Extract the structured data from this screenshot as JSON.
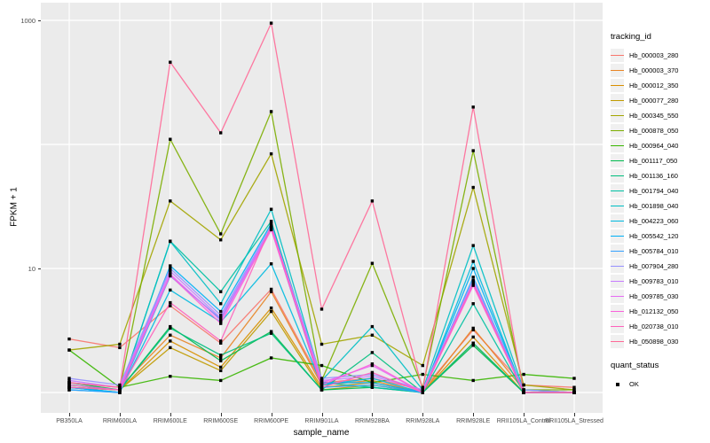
{
  "figure": {
    "panel_background": "#EBEBEB",
    "grid_color": "#FFFFFF",
    "point_color": "#000000",
    "tick_text_color": "#4D4D4D"
  },
  "chart_data": {
    "type": "line",
    "title": "",
    "xlabel": "sample_name",
    "ylabel": "FPKM + 1",
    "y_scale": "log10",
    "ylim": [
      0.68,
      1390
    ],
    "grid": true,
    "y_ticks": [
      {
        "label": "1000",
        "value": 1000
      },
      {
        "label": "10",
        "value": 10
      }
    ],
    "y_gridlines": [
      1000,
      100,
      10,
      1
    ],
    "categories": [
      "PB350LA",
      "RRIM600LA",
      "RRIM600LE",
      "RRIM600SE",
      "RRIM600PE",
      "RRIM901LA",
      "RRIM928BA",
      "RRIM928LA",
      "RRIM928LE",
      "RRII105LA_Control",
      "RRII105LA_Stressed"
    ],
    "legend": {
      "title": "tracking_id",
      "position": "right"
    },
    "legend2": {
      "title": "quant_status",
      "items": [
        {
          "label": "OK",
          "marker": "black-square"
        }
      ]
    },
    "series": [
      {
        "name": "Hb_000003_280",
        "color": "#F8766D",
        "values": [
          2.7,
          2.3,
          5.0,
          2.5,
          6.8,
          1.2,
          1.3,
          1.05,
          3.2,
          1.15,
          1.1
        ]
      },
      {
        "name": "Hb_000003_370",
        "color": "#E88526",
        "values": [
          1.2,
          1.1,
          2.9,
          1.9,
          6.5,
          1.15,
          1.25,
          1.0,
          3.3,
          1.05,
          1.0
        ]
      },
      {
        "name": "Hb_000012_350",
        "color": "#D89000",
        "values": [
          1.15,
          1.05,
          2.6,
          1.6,
          4.8,
          1.1,
          1.2,
          1.0,
          2.8,
          1.0,
          1.0
        ]
      },
      {
        "name": "Hb_000077_280",
        "color": "#C09B00",
        "values": [
          1.1,
          1.05,
          2.3,
          1.5,
          4.5,
          1.05,
          1.15,
          1.0,
          2.5,
          1.0,
          1.0
        ]
      },
      {
        "name": "Hb_000345_550",
        "color": "#A3A500",
        "values": [
          2.2,
          2.45,
          35,
          17,
          84,
          2.45,
          2.9,
          1.65,
          45,
          1.15,
          1.05
        ]
      },
      {
        "name": "Hb_000878_050",
        "color": "#7CAE00",
        "values": [
          1.1,
          1.05,
          110,
          19,
          184,
          1.25,
          11,
          1.1,
          89,
          1.05,
          1.05
        ]
      },
      {
        "name": "Hb_000964_040",
        "color": "#39B600",
        "values": [
          2.2,
          1.1,
          1.35,
          1.25,
          1.9,
          1.65,
          1.2,
          1.4,
          1.25,
          1.4,
          1.3
        ]
      },
      {
        "name": "Hb_001117_050",
        "color": "#00BB4E",
        "values": [
          1.2,
          1.05,
          3.4,
          1.8,
          3.1,
          1.05,
          1.1,
          1.0,
          2.4,
          1.0,
          1.0
        ]
      },
      {
        "name": "Hb_001136_160",
        "color": "#00BF7D",
        "values": [
          1.15,
          1.05,
          3.3,
          2.0,
          3.0,
          1.05,
          2.1,
          1.0,
          2.5,
          1.0,
          1.0
        ]
      },
      {
        "name": "Hb_001794_040",
        "color": "#00C1A3",
        "values": [
          1.1,
          1.0,
          16.6,
          6.5,
          24,
          1.2,
          1.1,
          1.0,
          5.2,
          1.0,
          1.0
        ]
      },
      {
        "name": "Hb_001898_040",
        "color": "#00BFC4",
        "values": [
          1.1,
          1.0,
          16.5,
          5.2,
          30,
          1.25,
          3.4,
          1.05,
          15.3,
          1.05,
          1.0
        ]
      },
      {
        "name": "Hb_004223_060",
        "color": "#00BAE0",
        "values": [
          1.05,
          1.0,
          6.7,
          3.7,
          10.9,
          1.15,
          1.3,
          1.0,
          11.4,
          1.0,
          1.0
        ]
      },
      {
        "name": "Hb_005542_120",
        "color": "#00B0F6",
        "values": [
          1.1,
          1.0,
          10.5,
          4.5,
          23,
          1.2,
          1.2,
          1.0,
          10.0,
          1.0,
          1.0
        ]
      },
      {
        "name": "Hb_005784_010",
        "color": "#35A2FF",
        "values": [
          1.05,
          1.0,
          8.7,
          3.9,
          21,
          1.1,
          1.15,
          1.0,
          8.5,
          1.0,
          1.0
        ]
      },
      {
        "name": "Hb_007904_280",
        "color": "#9590FF",
        "values": [
          1.3,
          1.15,
          10.0,
          4.2,
          22,
          1.3,
          1.4,
          1.05,
          8.0,
          1.05,
          1.0
        ]
      },
      {
        "name": "Hb_009783_010",
        "color": "#C77CFF",
        "values": [
          1.25,
          1.1,
          9.5,
          4.0,
          21.5,
          1.25,
          1.35,
          1.05,
          7.8,
          1.0,
          1.0
        ]
      },
      {
        "name": "Hb_009785_030",
        "color": "#E76BF3",
        "values": [
          1.2,
          1.1,
          9.0,
          3.8,
          21.0,
          1.2,
          1.65,
          1.0,
          7.5,
          1.0,
          1.0
        ]
      },
      {
        "name": "Hb_012132_050",
        "color": "#FA62DB",
        "values": [
          1.15,
          1.05,
          8.8,
          3.6,
          20.5,
          1.15,
          1.7,
          1.0,
          7.3,
          1.0,
          1.0
        ]
      },
      {
        "name": "Hb_020738_010",
        "color": "#FF62BC",
        "values": [
          1.1,
          1.05,
          5.3,
          2.6,
          22,
          1.1,
          1.45,
          1.0,
          7.6,
          1.0,
          1.0
        ]
      },
      {
        "name": "Hb_050898_030",
        "color": "#FF6A98",
        "values": [
          1.2,
          1.1,
          460,
          124,
          950,
          4.7,
          35,
          1.05,
          200,
          1.0,
          1.0
        ]
      }
    ]
  }
}
